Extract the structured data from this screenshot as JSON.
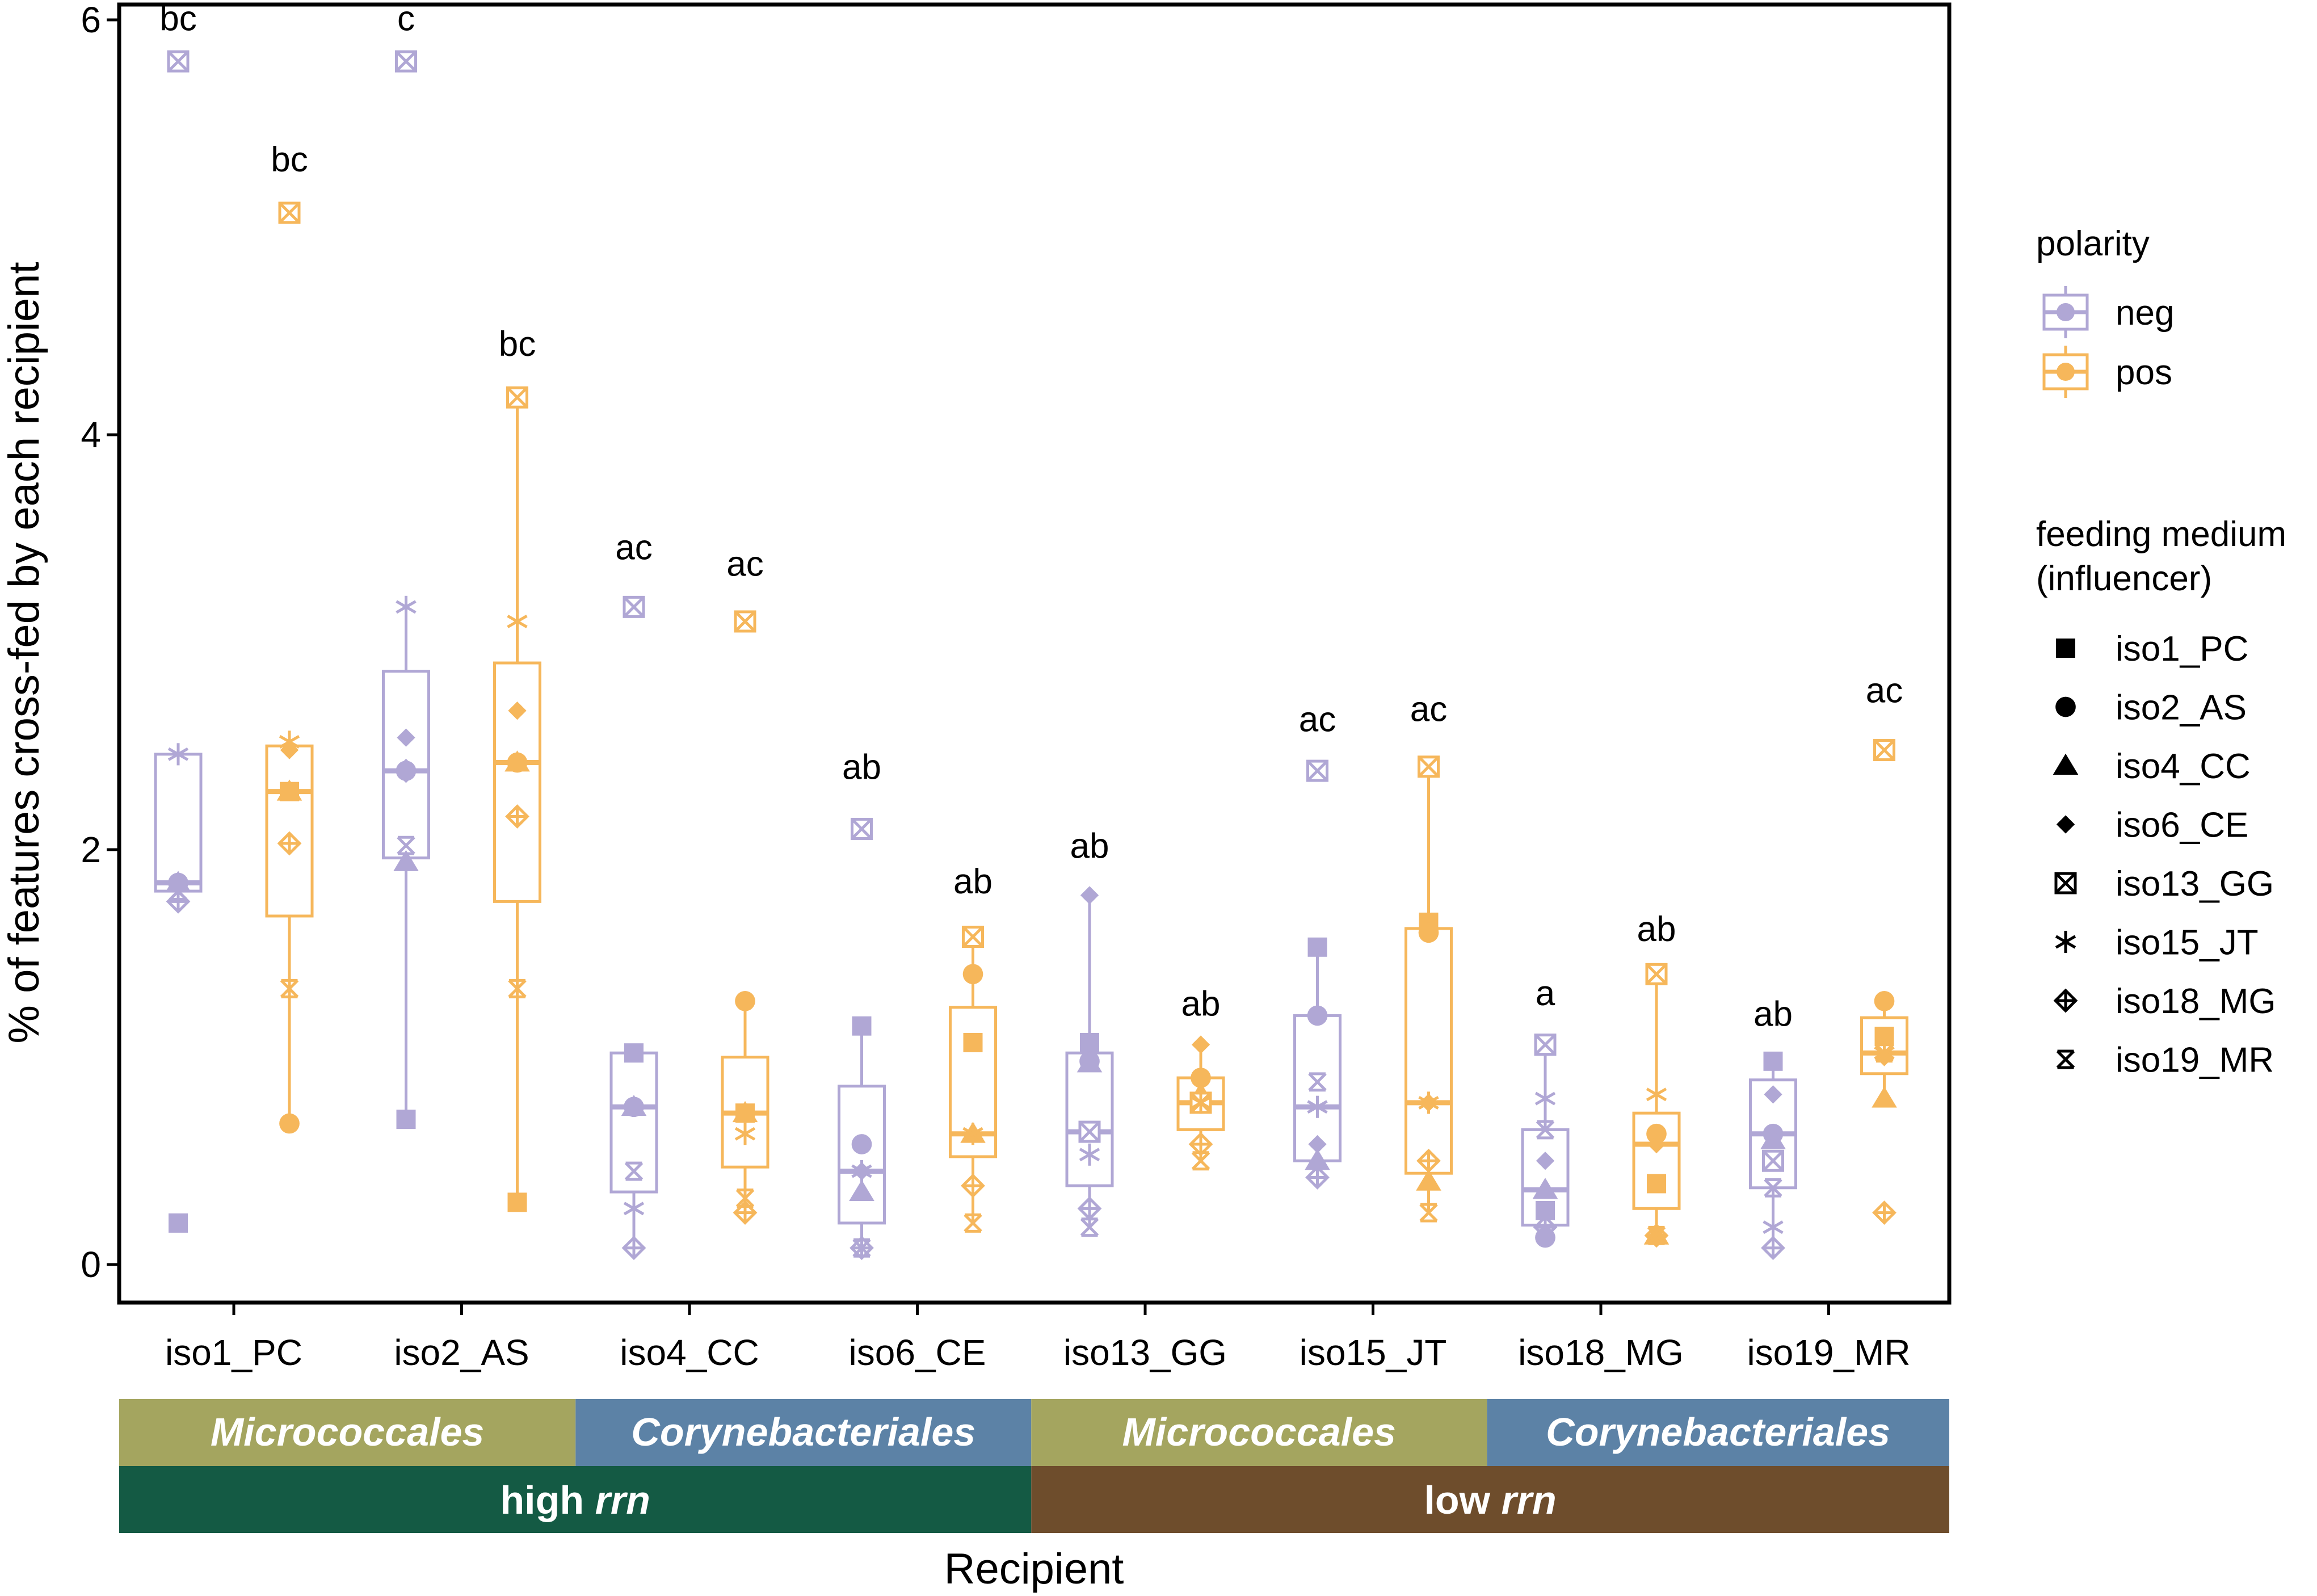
{
  "chart_data": {
    "type": "boxplot",
    "xlabel": "Recipient",
    "ylabel": "% of features cross-fed by each recipient",
    "ylim": [
      -0.18,
      6.1
    ],
    "y_ticks": [
      "0",
      "2",
      "4",
      "6"
    ],
    "y_tick_values": [
      0,
      2,
      4,
      6
    ],
    "grid": false,
    "legend_placement": "right",
    "colors": {
      "neg": "#b0a7d5",
      "pos": "#f6b75b"
    },
    "categories": [
      "iso1_PC",
      "iso2_AS",
      "iso4_CC",
      "iso6_CE",
      "iso13_GG",
      "iso15_JT",
      "iso18_MG",
      "iso19_MR"
    ],
    "series": [
      {
        "name": "neg",
        "boxes": [
          {
            "min": 1.8,
            "q1": 1.8,
            "median": 1.84,
            "q3": 2.46,
            "max": 2.46
          },
          {
            "min": 0.7,
            "q1": 1.96,
            "median": 2.38,
            "q3": 2.86,
            "max": 3.17
          },
          {
            "min": 0.08,
            "q1": 0.35,
            "median": 0.76,
            "q3": 1.02,
            "max": 1.02
          },
          {
            "min": 0.08,
            "q1": 0.2,
            "median": 0.45,
            "q3": 0.86,
            "max": 1.15
          },
          {
            "min": 0.18,
            "q1": 0.38,
            "median": 0.64,
            "q3": 1.02,
            "max": 1.78
          },
          {
            "min": 0.38,
            "q1": 0.5,
            "median": 0.76,
            "q3": 1.2,
            "max": 1.53
          },
          {
            "min": 0.13,
            "q1": 0.19,
            "median": 0.36,
            "q3": 0.65,
            "max": 1.06
          },
          {
            "min": 0.08,
            "q1": 0.37,
            "median": 0.63,
            "q3": 0.89,
            "max": 0.98
          }
        ],
        "points": [
          {
            "iso1_PC": 0.2,
            "iso2_AS": 0.7,
            "iso4_CC": 1.02,
            "iso6_CE": 1.15,
            "iso13_GG": 1.07,
            "iso15_JT": 1.53,
            "iso18_MG": 0.26,
            "iso19_MR": 0.98
          },
          {
            "iso1_PC": 1.84,
            "iso2_AS": 2.38,
            "iso4_CC": 0.76,
            "iso6_CE": 0.58,
            "iso13_GG": 0.98,
            "iso15_JT": 1.2,
            "iso18_MG": 0.13,
            "iso19_MR": 0.63
          },
          {
            "iso1_PC": 1.84,
            "iso2_AS": 1.94,
            "iso4_CC": 0.76,
            "iso6_CE": 0.35,
            "iso13_GG": 0.97,
            "iso15_JT": 0.5,
            "iso18_MG": 0.36,
            "iso19_MR": 0.6
          },
          {
            "iso1_PC": 1.84,
            "iso2_AS": 2.54,
            "iso4_CC": 0.76,
            "iso6_CE": 0.45,
            "iso13_GG": 1.78,
            "iso15_JT": 0.58,
            "iso18_MG": 0.5,
            "iso19_MR": 0.82
          },
          {
            "iso1_PC": 5.8,
            "iso2_AS": 5.8,
            "iso4_CC": 3.17,
            "iso6_CE": 2.1,
            "iso13_GG": 0.64,
            "iso15_JT": 2.38,
            "iso18_MG": 1.06,
            "iso19_MR": 0.5
          },
          {
            "iso1_PC": 2.46,
            "iso2_AS": 3.17,
            "iso4_CC": 0.27,
            "iso6_CE": 0.45,
            "iso13_GG": 0.53,
            "iso15_JT": 0.76,
            "iso18_MG": 0.8,
            "iso19_MR": 0.18
          },
          {
            "iso1_PC": 1.75,
            "iso2_AS": 2.38,
            "iso4_CC": 0.08,
            "iso6_CE": 0.08,
            "iso13_GG": 0.27,
            "iso15_JT": 0.42,
            "iso18_MG": 0.18,
            "iso19_MR": 0.08
          },
          {
            "iso1_PC": 1.8,
            "iso2_AS": 2.02,
            "iso4_CC": 0.45,
            "iso6_CE": 0.08,
            "iso13_GG": 0.18,
            "iso15_JT": 0.88,
            "iso18_MG": 0.65,
            "iso19_MR": 0.37
          }
        ]
      },
      {
        "name": "pos",
        "boxes": [
          {
            "min": 0.68,
            "q1": 1.68,
            "median": 2.28,
            "q3": 2.5,
            "max": 2.5
          },
          {
            "min": 0.3,
            "q1": 1.75,
            "median": 2.42,
            "q3": 2.9,
            "max": 4.18
          },
          {
            "min": 0.25,
            "q1": 0.47,
            "median": 0.73,
            "q3": 1.0,
            "max": 1.27
          },
          {
            "min": 0.2,
            "q1": 0.52,
            "median": 0.63,
            "q3": 1.24,
            "max": 1.58
          },
          {
            "min": 0.5,
            "q1": 0.65,
            "median": 0.78,
            "q3": 0.9,
            "max": 1.06
          },
          {
            "min": 0.25,
            "q1": 0.44,
            "median": 0.78,
            "q3": 1.62,
            "max": 2.4
          },
          {
            "min": 0.14,
            "q1": 0.27,
            "median": 0.58,
            "q3": 0.73,
            "max": 1.4
          },
          {
            "min": 0.8,
            "q1": 0.92,
            "median": 1.02,
            "q3": 1.19,
            "max": 1.27
          }
        ],
        "points": [
          {
            "iso1_PC": 2.28,
            "iso2_AS": 0.3,
            "iso4_CC": 0.73,
            "iso6_CE": 1.07,
            "iso13_GG": 0.78,
            "iso15_JT": 1.65,
            "iso18_MG": 0.39,
            "iso19_MR": 1.1
          },
          {
            "iso1_PC": 0.68,
            "iso2_AS": 2.42,
            "iso4_CC": 1.27,
            "iso6_CE": 1.4,
            "iso13_GG": 0.9,
            "iso15_JT": 1.6,
            "iso18_MG": 0.63,
            "iso19_MR": 1.27
          },
          {
            "iso1_PC": 2.28,
            "iso2_AS": 2.42,
            "iso4_CC": 0.73,
            "iso6_CE": 0.63,
            "iso13_GG": 0.82,
            "iso15_JT": 0.4,
            "iso18_MG": 0.14,
            "iso19_MR": 0.8
          },
          {
            "iso1_PC": 2.48,
            "iso2_AS": 2.67,
            "iso4_CC": 0.73,
            "iso6_CE": 0.63,
            "iso13_GG": 1.06,
            "iso15_JT": 0.78,
            "iso18_MG": 0.58,
            "iso19_MR": 1.0
          },
          {
            "iso1_PC": 5.07,
            "iso2_AS": 4.18,
            "iso4_CC": 3.1,
            "iso6_CE": 1.58,
            "iso13_GG": 0.78,
            "iso15_JT": 2.4,
            "iso18_MG": 1.4,
            "iso19_MR": 2.48
          },
          {
            "iso1_PC": 2.52,
            "iso2_AS": 3.1,
            "iso4_CC": 0.63,
            "iso6_CE": 0.63,
            "iso13_GG": 0.78,
            "iso15_JT": 0.78,
            "iso18_MG": 0.82,
            "iso19_MR": 1.02
          },
          {
            "iso1_PC": 2.03,
            "iso2_AS": 2.16,
            "iso4_CC": 0.25,
            "iso6_CE": 0.38,
            "iso13_GG": 0.58,
            "iso15_JT": 0.5,
            "iso18_MG": 0.14,
            "iso19_MR": 0.25
          },
          {
            "iso1_PC": 1.33,
            "iso2_AS": 1.33,
            "iso4_CC": 0.32,
            "iso6_CE": 0.2,
            "iso13_GG": 0.5,
            "iso15_JT": 0.25,
            "iso18_MG": 0.14,
            "iso19_MR": 1.02
          }
        ]
      }
    ],
    "annotations": [
      {
        "text": "bc",
        "category": "iso1_PC",
        "series": "neg",
        "y": 5.95
      },
      {
        "text": "bc",
        "category": "iso1_PC",
        "series": "pos",
        "y": 5.27
      },
      {
        "text": "c",
        "category": "iso2_AS",
        "series": "neg",
        "y": 5.95
      },
      {
        "text": "bc",
        "category": "iso2_AS",
        "series": "pos",
        "y": 4.38
      },
      {
        "text": "ac",
        "category": "iso4_CC",
        "series": "neg",
        "y": 3.4
      },
      {
        "text": "ac",
        "category": "iso4_CC",
        "series": "pos",
        "y": 3.32
      },
      {
        "text": "ab",
        "category": "iso6_CE",
        "series": "neg",
        "y": 2.34
      },
      {
        "text": "ab",
        "category": "iso6_CE",
        "series": "pos",
        "y": 1.79
      },
      {
        "text": "ab",
        "category": "iso13_GG",
        "series": "neg",
        "y": 1.96
      },
      {
        "text": "ab",
        "category": "iso13_GG",
        "series": "pos",
        "y": 1.2
      },
      {
        "text": "ac",
        "category": "iso15_JT",
        "series": "neg",
        "y": 2.57
      },
      {
        "text": "ac",
        "category": "iso15_JT",
        "series": "pos",
        "y": 2.62
      },
      {
        "text": "a",
        "category": "iso18_MG",
        "series": "neg",
        "y": 1.25
      },
      {
        "text": "ab",
        "category": "iso18_MG",
        "series": "pos",
        "y": 1.56
      },
      {
        "text": "ab",
        "category": "iso19_MR",
        "series": "neg",
        "y": 1.15
      },
      {
        "text": "ac",
        "category": "iso19_MR",
        "series": "pos",
        "y": 2.71
      }
    ],
    "order_bands": [
      {
        "label": "Micrococcales",
        "span": [
          "iso1_PC",
          "iso2_AS"
        ],
        "color": "#a4a55f"
      },
      {
        "label": "Corynebacteriales",
        "span": [
          "iso4_CC",
          "iso6_CE"
        ],
        "color": "#5c82a6"
      },
      {
        "label": "Micrococcales",
        "span": [
          "iso13_GG",
          "iso15_JT"
        ],
        "color": "#a4a55f"
      },
      {
        "label": "Corynebacteriales",
        "span": [
          "iso18_MG",
          "iso19_MR"
        ],
        "color": "#5c82a6"
      }
    ],
    "rrn_bands": [
      {
        "label_prefix": "high ",
        "label_italic": "rrn",
        "span": [
          "iso1_PC",
          "iso6_CE"
        ],
        "color": "#145a44"
      },
      {
        "label_prefix": "low ",
        "label_italic": "rrn",
        "span": [
          "iso13_GG",
          "iso19_MR"
        ],
        "color": "#6e4d2c"
      }
    ],
    "legend": {
      "polarity_title": "polarity",
      "polarity": [
        {
          "label": "neg",
          "color": "#b0a7d5"
        },
        {
          "label": "pos",
          "color": "#f6b75b"
        }
      ],
      "medium_title": [
        "feeding medium",
        "(influencer)"
      ],
      "medium": [
        {
          "label": "iso1_PC",
          "shape": "square-filled"
        },
        {
          "label": "iso2_AS",
          "shape": "circle-filled"
        },
        {
          "label": "iso4_CC",
          "shape": "triangle-filled"
        },
        {
          "label": "iso6_CE",
          "shape": "diamond-filled"
        },
        {
          "label": "iso13_GG",
          "shape": "square-x"
        },
        {
          "label": "iso15_JT",
          "shape": "asterisk"
        },
        {
          "label": "iso18_MG",
          "shape": "diamond-plus"
        },
        {
          "label": "iso19_MR",
          "shape": "square-x-bowtie"
        }
      ]
    }
  }
}
